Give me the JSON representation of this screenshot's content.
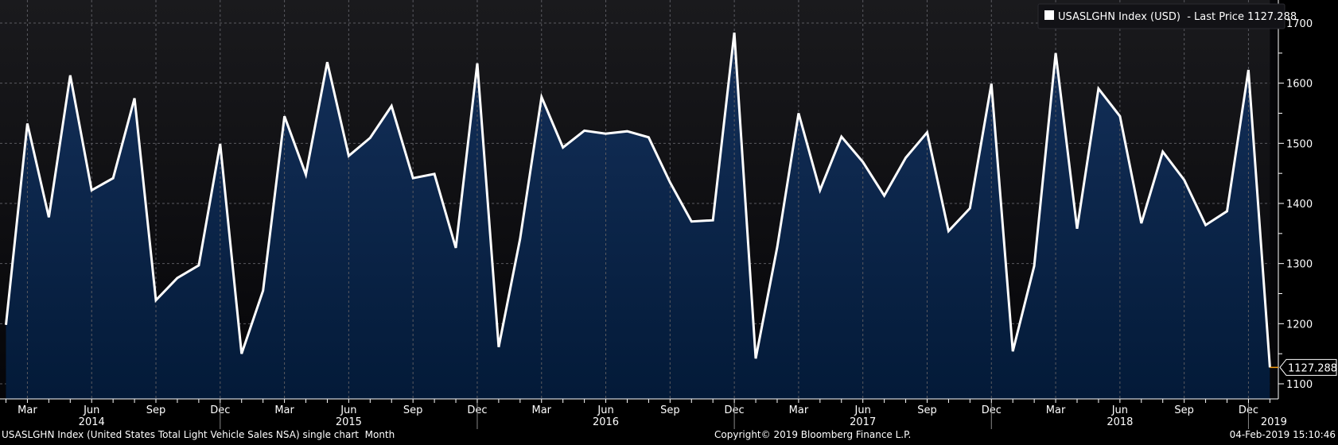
{
  "legend": {
    "label": "USASLGHN Index (USD)  - Last Price 1127.288",
    "swatch_color": "#ffffff"
  },
  "last_price_label": "1127.288",
  "footer": {
    "description": "USASLGHN Index (United States Total Light Vehicle Sales NSA) single chart  Month",
    "copyright": "Copyright© 2019 Bloomberg Finance L.P.",
    "timestamp": "04-Feb-2019 15:10:46"
  },
  "chart_data": {
    "type": "area",
    "title": "",
    "xlabel": "",
    "ylabel": "",
    "ylim": [
      1070,
      1740
    ],
    "y_ticks": [
      "1100",
      "1200",
      "1300",
      "1400",
      "1500",
      "1600",
      "1700"
    ],
    "grid": true,
    "legend_position": "top-right",
    "line_color": "#ffffff",
    "fill_color": "#10294a",
    "last_price_color": "#f39c12",
    "month_tick_labels": [
      "Mar",
      "Jun",
      "Sep",
      "Dec",
      "Mar",
      "Jun",
      "Sep",
      "Dec",
      "Mar",
      "Jun",
      "Sep",
      "Dec",
      "Mar",
      "Jun",
      "Sep",
      "Dec",
      "Mar",
      "Jun",
      "Sep",
      "Dec"
    ],
    "year_labels": [
      "2014",
      "2015",
      "2016",
      "2017",
      "2018",
      "2019"
    ],
    "x": [
      "2014-02",
      "2014-03",
      "2014-04",
      "2014-05",
      "2014-06",
      "2014-07",
      "2014-08",
      "2014-09",
      "2014-10",
      "2014-11",
      "2014-12",
      "2015-01",
      "2015-02",
      "2015-03",
      "2015-04",
      "2015-05",
      "2015-06",
      "2015-07",
      "2015-08",
      "2015-09",
      "2015-10",
      "2015-11",
      "2015-12",
      "2016-01",
      "2016-02",
      "2016-03",
      "2016-04",
      "2016-05",
      "2016-06",
      "2016-07",
      "2016-08",
      "2016-09",
      "2016-10",
      "2016-11",
      "2016-12",
      "2017-01",
      "2017-02",
      "2017-03",
      "2017-04",
      "2017-05",
      "2017-06",
      "2017-07",
      "2017-08",
      "2017-09",
      "2017-10",
      "2017-11",
      "2017-12",
      "2018-01",
      "2018-02",
      "2018-03",
      "2018-04",
      "2018-05",
      "2018-06",
      "2018-07",
      "2018-08",
      "2018-09",
      "2018-10",
      "2018-11",
      "2018-12",
      "2019-01"
    ],
    "series": [
      {
        "name": "USASLGHN Index (USD)",
        "values": [
          1198,
          1533,
          1377,
          1613,
          1422,
          1442,
          1575,
          1239,
          1276,
          1297,
          1499,
          1150,
          1255,
          1545,
          1448,
          1635,
          1479,
          1509,
          1562,
          1442,
          1449,
          1326,
          1633,
          1161,
          1341,
          1577,
          1493,
          1521,
          1516,
          1520,
          1510,
          1435,
          1370,
          1372,
          1684,
          1142,
          1327,
          1550,
          1422,
          1511,
          1469,
          1413,
          1476,
          1518,
          1354,
          1392,
          1599,
          1154,
          1296,
          1650,
          1358,
          1591,
          1545,
          1367,
          1486,
          1439,
          1364,
          1387,
          1622,
          1127.288
        ]
      }
    ]
  }
}
